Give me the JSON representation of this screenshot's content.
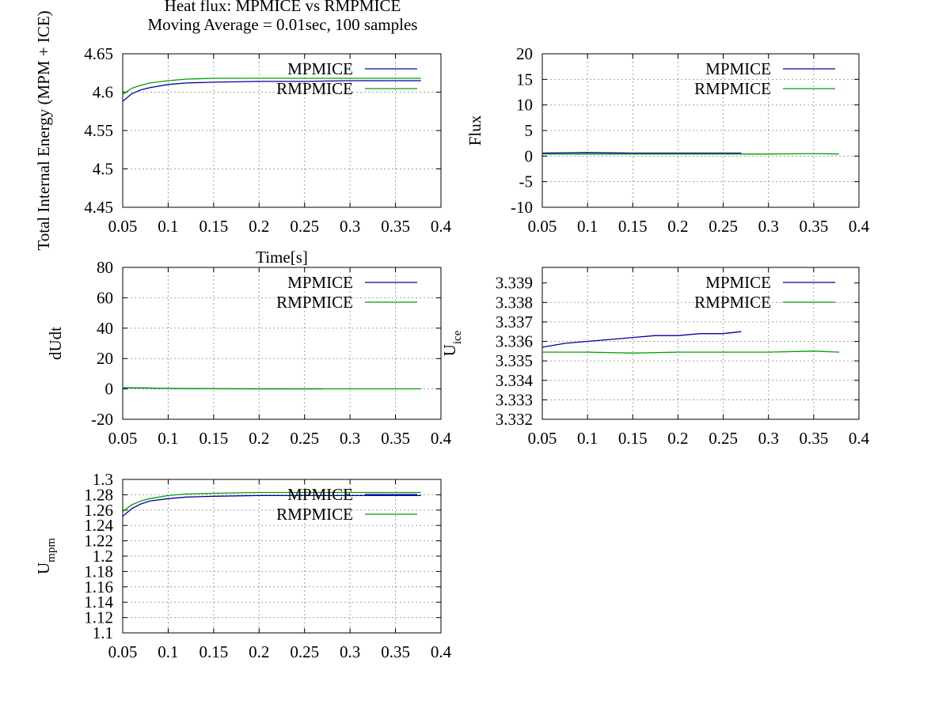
{
  "figure": {
    "title_line1": "Heat flux: MPMICE vs RMPMICE",
    "title_line2": "Moving Average = 0.01sec, 100 samples"
  },
  "colors": {
    "MPMICE": "#0000a0",
    "RMPMICE": "#00a000",
    "grid": "#a0a0a0"
  },
  "chart_data": [
    {
      "type": "line",
      "xlabel": "Time[s]",
      "ylabel": "Total Internal Energy (MPM + ICE)",
      "xlim": [
        0.05,
        0.4
      ],
      "ylim": [
        4.45,
        4.65
      ],
      "x_ticks": [
        "0.05",
        "0.1",
        "0.15",
        "0.2",
        "0.25",
        "0.3",
        "0.35",
        "0.4"
      ],
      "y_ticks": [
        "4.45",
        "4.5",
        "4.55",
        "4.6",
        "4.65"
      ],
      "grid": true,
      "legend": "top-right",
      "series": [
        {
          "name": "MPMICE",
          "x": [
            0.05,
            0.06,
            0.07,
            0.08,
            0.1,
            0.12,
            0.15,
            0.2,
            0.25,
            0.3,
            0.35,
            0.378
          ],
          "y": [
            4.588,
            4.598,
            4.603,
            4.606,
            4.61,
            4.612,
            4.613,
            4.614,
            4.614,
            4.615,
            4.615,
            4.615
          ]
        },
        {
          "name": "RMPMICE",
          "x": [
            0.05,
            0.06,
            0.07,
            0.08,
            0.1,
            0.12,
            0.15,
            0.2,
            0.25,
            0.3,
            0.35,
            0.378
          ],
          "y": [
            4.597,
            4.605,
            4.609,
            4.612,
            4.615,
            4.617,
            4.618,
            4.618,
            4.618,
            4.618,
            4.618,
            4.618
          ]
        }
      ]
    },
    {
      "type": "line",
      "xlabel": "",
      "ylabel": "Flux",
      "xlim": [
        0.05,
        0.4
      ],
      "ylim": [
        -10,
        20
      ],
      "x_ticks": [
        "0.05",
        "0.1",
        "0.15",
        "0.2",
        "0.25",
        "0.3",
        "0.35",
        "0.4"
      ],
      "y_ticks": [
        "-10",
        "-5",
        "0",
        "5",
        "10",
        "15",
        "20"
      ],
      "grid": true,
      "legend": "top-right",
      "series": [
        {
          "name": "MPMICE",
          "x": [
            0.05,
            0.1,
            0.15,
            0.2,
            0.25,
            0.27
          ],
          "y": [
            0.6,
            0.7,
            0.6,
            0.6,
            0.6,
            0.6
          ]
        },
        {
          "name": "RMPMICE",
          "x": [
            0.05,
            0.1,
            0.15,
            0.2,
            0.25,
            0.3,
            0.35,
            0.378
          ],
          "y": [
            0.4,
            0.4,
            0.4,
            0.4,
            0.4,
            0.4,
            0.5,
            0.4
          ]
        }
      ]
    },
    {
      "type": "line",
      "xlabel": "",
      "ylabel": "dUdt",
      "xlim": [
        0.05,
        0.4
      ],
      "ylim": [
        -20,
        80
      ],
      "x_ticks": [
        "0.05",
        "0.1",
        "0.15",
        "0.2",
        "0.25",
        "0.3",
        "0.35",
        "0.4"
      ],
      "y_ticks": [
        "-20",
        "0",
        "20",
        "40",
        "60",
        "80"
      ],
      "grid": true,
      "legend": "top-right",
      "series": [
        {
          "name": "MPMICE",
          "x": [
            0.05,
            0.06,
            0.08,
            0.1,
            0.15,
            0.2,
            0.25,
            0.27
          ],
          "y": [
            0.8,
            0.7,
            0.5,
            0.3,
            0.1,
            0.05,
            0.05,
            0.05
          ]
        },
        {
          "name": "RMPMICE",
          "x": [
            0.05,
            0.06,
            0.08,
            0.1,
            0.15,
            0.2,
            0.25,
            0.3,
            0.35,
            0.378
          ],
          "y": [
            0.9,
            0.8,
            0.6,
            0.3,
            0.1,
            0.05,
            0.05,
            0.05,
            0.05,
            0.05
          ]
        }
      ]
    },
    {
      "type": "line",
      "xlabel": "",
      "ylabel": "U",
      "ylabel_sub": "ice",
      "xlim": [
        0.05,
        0.4
      ],
      "ylim": [
        3.332,
        3.3398
      ],
      "x_ticks": [
        "0.05",
        "0.1",
        "0.15",
        "0.2",
        "0.25",
        "0.3",
        "0.35",
        "0.4"
      ],
      "y_ticks": [
        "3.332",
        "3.333",
        "3.334",
        "3.335",
        "3.336",
        "3.337",
        "3.338",
        "3.339"
      ],
      "grid": true,
      "legend": "top-right",
      "series": [
        {
          "name": "MPMICE",
          "x": [
            0.05,
            0.075,
            0.1,
            0.125,
            0.15,
            0.175,
            0.2,
            0.225,
            0.25,
            0.27
          ],
          "y": [
            3.3357,
            3.3359,
            3.336,
            3.3361,
            3.3362,
            3.3363,
            3.3363,
            3.3364,
            3.3364,
            3.3365
          ]
        },
        {
          "name": "RMPMICE",
          "x": [
            0.05,
            0.1,
            0.15,
            0.2,
            0.25,
            0.3,
            0.35,
            0.378
          ],
          "y": [
            3.33545,
            3.33545,
            3.3354,
            3.33545,
            3.33545,
            3.33545,
            3.3355,
            3.33545
          ]
        }
      ]
    },
    {
      "type": "line",
      "xlabel": "",
      "ylabel": "U",
      "ylabel_sub": "mpm",
      "xlim": [
        0.05,
        0.4
      ],
      "ylim": [
        1.1,
        1.3
      ],
      "x_ticks": [
        "0.05",
        "0.1",
        "0.15",
        "0.2",
        "0.25",
        "0.3",
        "0.35",
        "0.4"
      ],
      "y_ticks": [
        "1.1",
        "1.12",
        "1.14",
        "1.16",
        "1.18",
        "1.2",
        "1.22",
        "1.24",
        "1.26",
        "1.28",
        "1.3"
      ],
      "grid": true,
      "legend": "top-right",
      "series": [
        {
          "name": "MPMICE",
          "x": [
            0.05,
            0.06,
            0.07,
            0.08,
            0.1,
            0.12,
            0.15,
            0.2,
            0.25,
            0.3,
            0.35,
            0.378
          ],
          "y": [
            1.252,
            1.262,
            1.268,
            1.272,
            1.275,
            1.277,
            1.278,
            1.279,
            1.279,
            1.279,
            1.279,
            1.279
          ]
        },
        {
          "name": "RMPMICE",
          "x": [
            0.05,
            0.06,
            0.07,
            0.08,
            0.1,
            0.12,
            0.15,
            0.2,
            0.25,
            0.3,
            0.35,
            0.378
          ],
          "y": [
            1.258,
            1.267,
            1.272,
            1.275,
            1.279,
            1.281,
            1.282,
            1.283,
            1.283,
            1.283,
            1.283,
            1.283
          ]
        }
      ]
    }
  ]
}
